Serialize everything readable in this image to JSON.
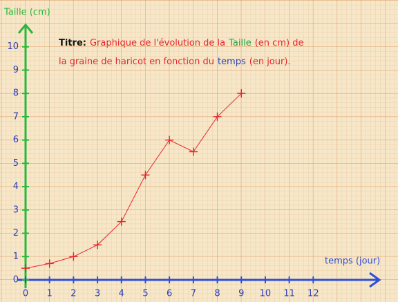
{
  "chart_data": {
    "type": "line",
    "title_lines": [
      [
        {
          "text": "Titre:",
          "color": "#111111"
        },
        {
          "text": "Graphique de l'évolution de la",
          "color": "#e8262b"
        },
        {
          "text": "Taille",
          "color": "#27a83c"
        },
        {
          "text": "(en cm) de",
          "color": "#e8262b"
        }
      ],
      [
        {
          "text": "la graine de haricot en fonction du",
          "color": "#e8262b"
        },
        {
          "text": "temps",
          "color": "#2a3fb8"
        },
        {
          "text": "(en jour).",
          "color": "#e8262b"
        }
      ]
    ],
    "y_label": "Taille (cm)",
    "x_label": "temps (jour)",
    "y_axis_color": "#27b83c",
    "x_axis_color": "#2f4fd8",
    "x": [
      0,
      1,
      2,
      3,
      4,
      5,
      6,
      7,
      8,
      9
    ],
    "series": [
      {
        "color": "#e8262b",
        "values": [
          0.5,
          0.7,
          1,
          1.5,
          2.5,
          4.5,
          6,
          5.5,
          7,
          8
        ]
      }
    ],
    "xlim": [
      0,
      14.7
    ],
    "ylim": [
      0,
      11
    ],
    "xticks": [
      0,
      1,
      2,
      3,
      4,
      5,
      6,
      7,
      8,
      9,
      10,
      11,
      12
    ],
    "yticks": [
      0,
      1,
      2,
      3,
      4,
      5,
      6,
      7,
      8,
      9,
      10
    ]
  }
}
